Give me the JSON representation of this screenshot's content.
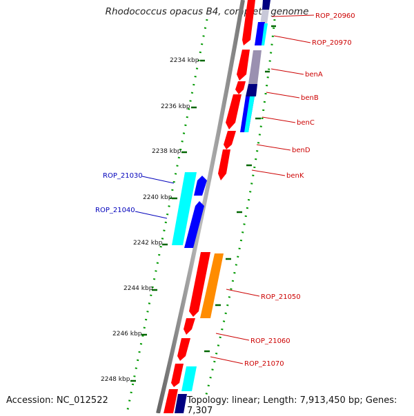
{
  "title": "Rhodococcus opacus B4, complete genome",
  "accession": "Accession: NC_012522",
  "topology": "Topology: linear; Length: 7,913,450 bp; Genes: 7,307",
  "ticks": [
    "2234 kbp",
    "2236 kbp",
    "2238 kbp",
    "2240 kbp",
    "2242 kbp",
    "2244 kbp",
    "2246 kbp",
    "2248 kbp"
  ],
  "genes_right": [
    "ROP_20960",
    "ROP_20970",
    "benA",
    "benB",
    "benC",
    "benD",
    "benK",
    "ROP_21050",
    "ROP_21060",
    "ROP_21070"
  ],
  "genes_left": [
    "ROP_21030",
    "ROP_21040"
  ],
  "colors": {
    "red": "#ff0000",
    "blue": "#0000ff",
    "navy": "#000080",
    "cyan": "#00ffff",
    "orange": "#ff8c00",
    "grey": "#9a90b0",
    "backbone": "#888888",
    "tick": "#006600"
  }
}
